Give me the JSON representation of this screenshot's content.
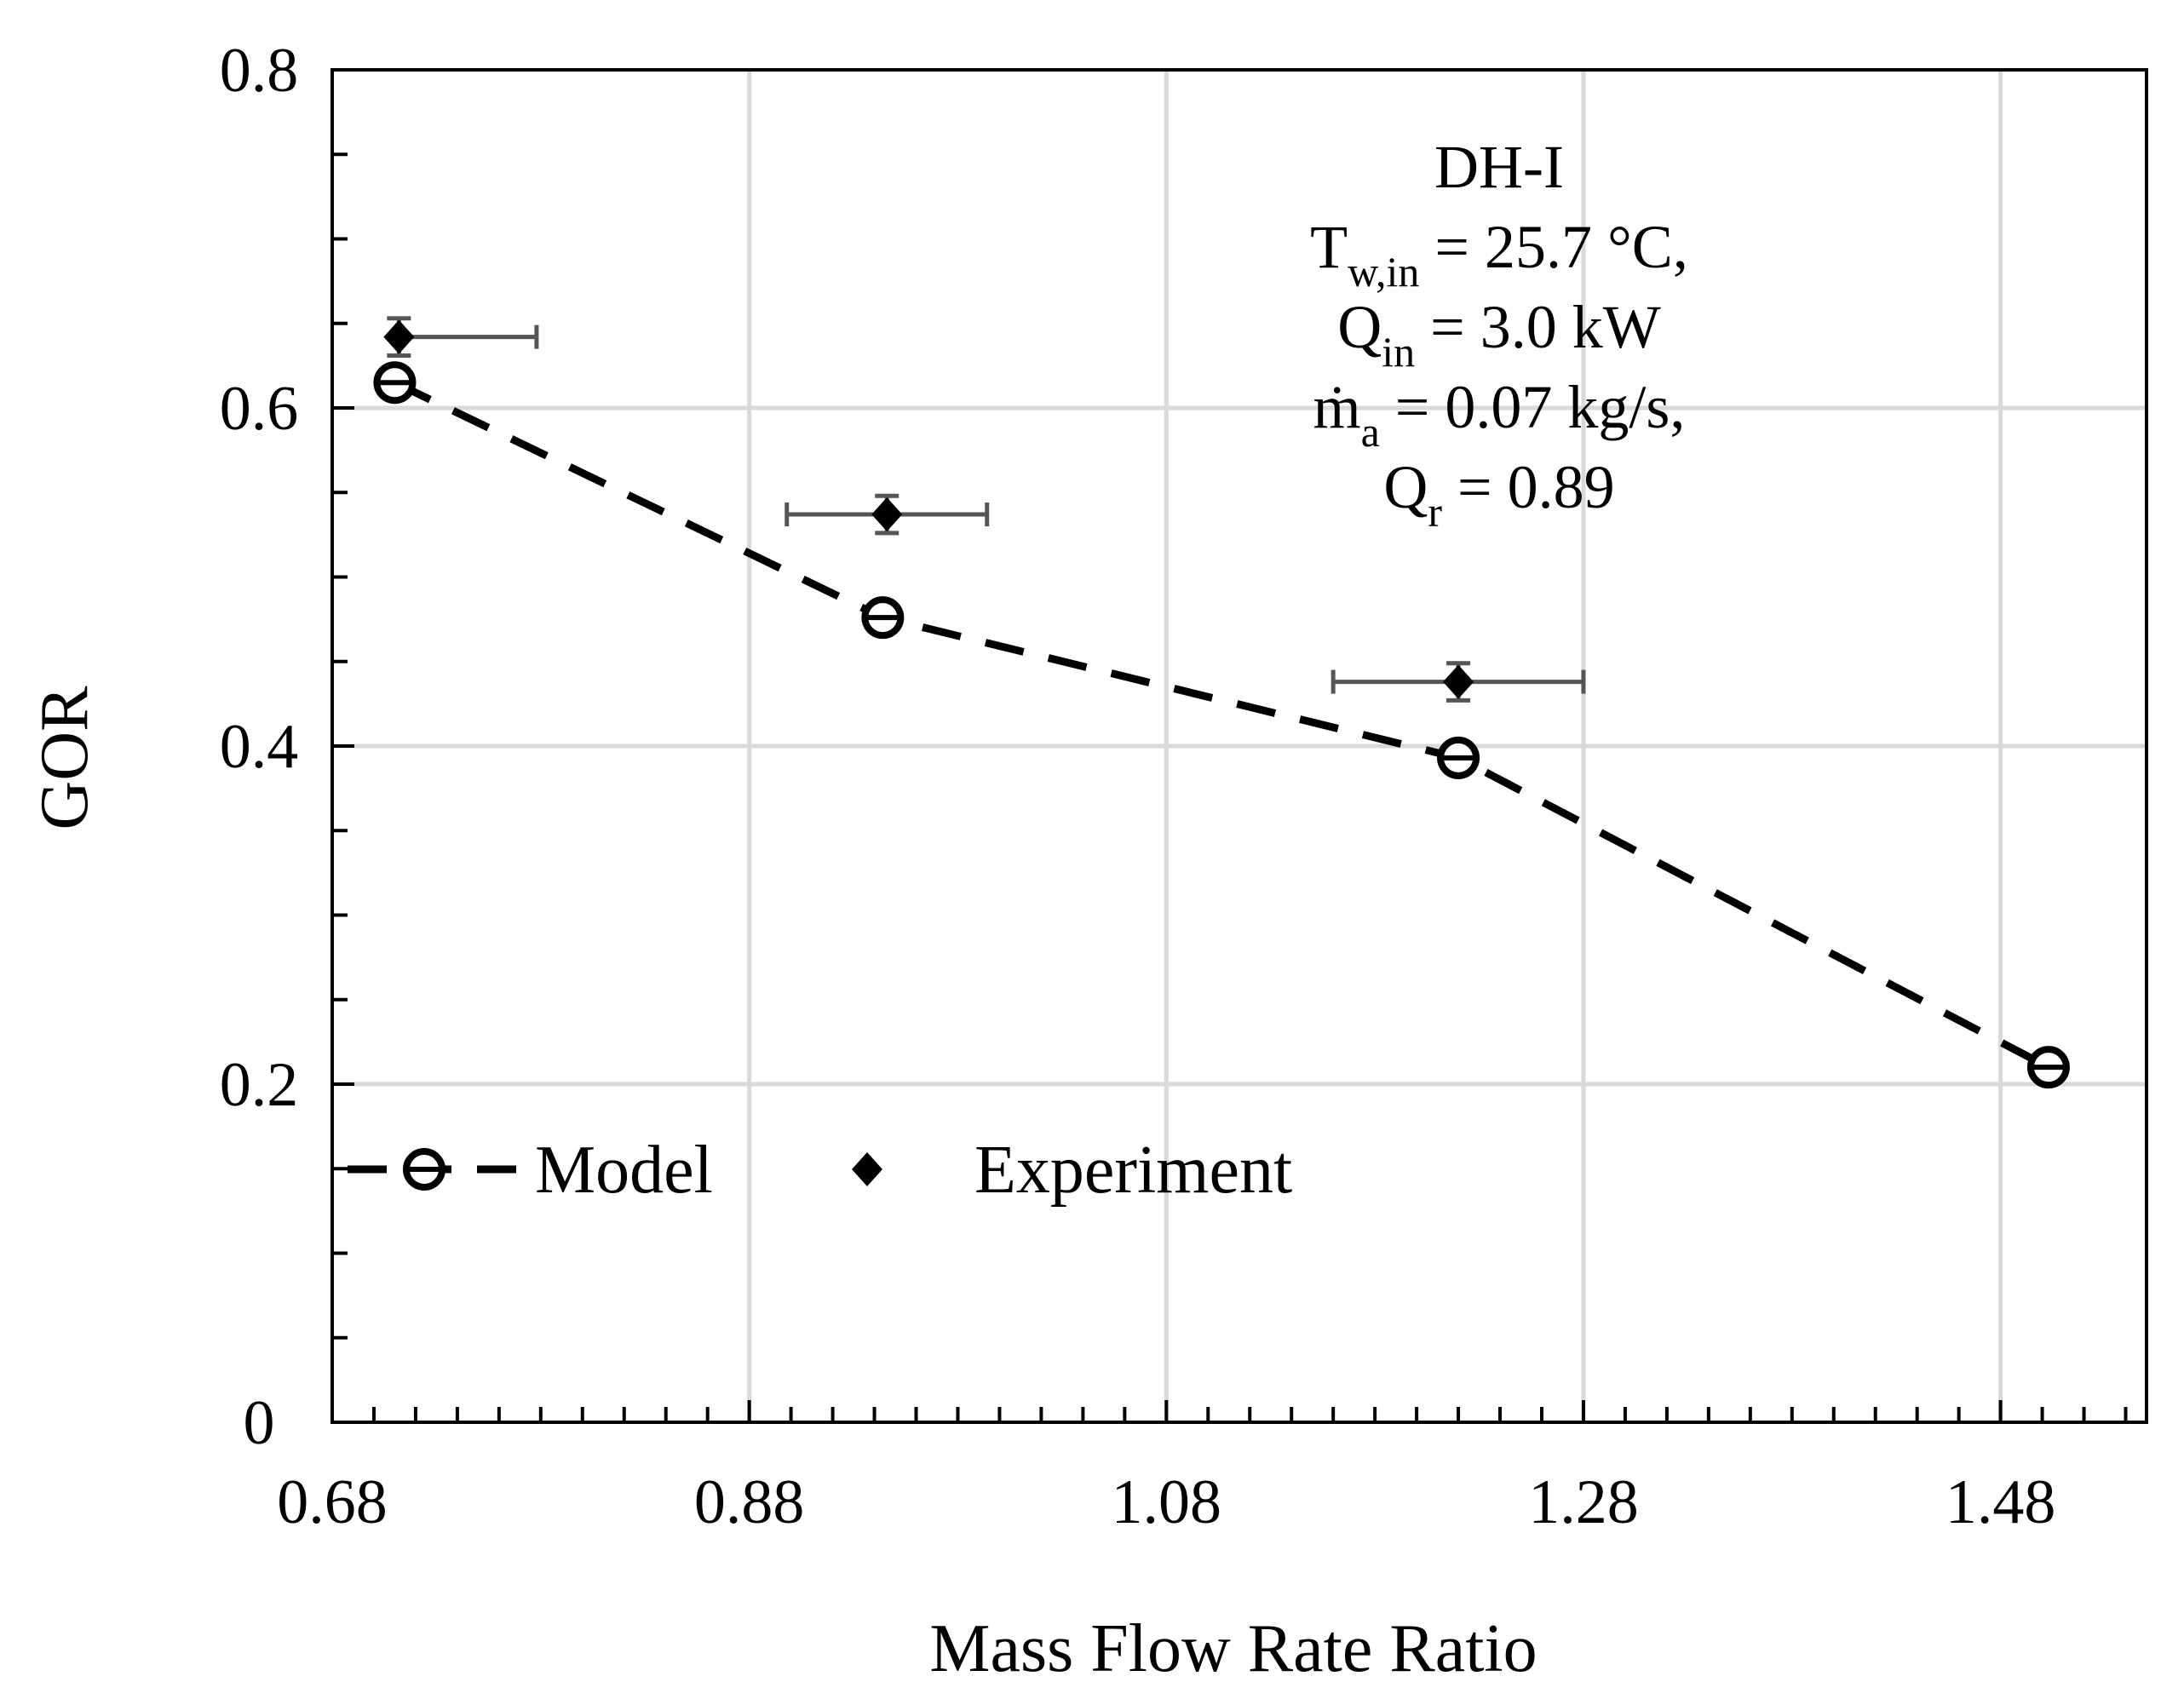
{
  "chart_data": {
    "type": "scatter",
    "title": "",
    "xlabel": "Mass Flow Rate Ratio",
    "ylabel": "GOR",
    "xlim": [
      0.68,
      1.55
    ],
    "ylim": [
      0,
      0.8
    ],
    "x_ticks": [
      0.68,
      0.88,
      1.08,
      1.28,
      1.48
    ],
    "x_tick_labels": [
      "0.68",
      "0.88",
      "1.08",
      "1.28",
      "1.48"
    ],
    "y_ticks": [
      0,
      0.2,
      0.4,
      0.6,
      0.8
    ],
    "y_tick_labels": [
      "0",
      "0.2",
      "0.4",
      "0.6",
      "0.8"
    ],
    "grid": true,
    "series": [
      {
        "name": "Model",
        "style": "dashed-line-with-circle-markers",
        "color": "#000000",
        "x": [
          0.71,
          0.944,
          1.22,
          1.503
        ],
        "y": [
          0.615,
          0.476,
          0.393,
          0.21
        ]
      },
      {
        "name": "Experiment",
        "style": "diamond-markers-with-error-bars",
        "color": "#000000",
        "errorbar_color": "#555555",
        "x": [
          0.712,
          0.946,
          1.22
        ],
        "y": [
          0.642,
          0.537,
          0.438
        ],
        "x_err_low": [
          0.712,
          0.898,
          1.16
        ],
        "x_err_high": [
          0.778,
          0.994,
          1.28
        ],
        "y_err": [
          0.011,
          0.011,
          0.011
        ]
      }
    ],
    "legend": {
      "placement": "bottom-left",
      "entries": [
        "Model",
        "Experiment"
      ]
    },
    "annotation": {
      "line1": "DH-I",
      "line2": {
        "base": "T",
        "sub": "w,in",
        "rest": " = 25.7 °C,"
      },
      "line3": {
        "base": "Q",
        "sub": "in",
        "rest": " = 3.0 kW"
      },
      "line4": {
        "base": "ṁ",
        "sub": "a",
        "rest": " = 0.07 kg/s,"
      },
      "line5": {
        "base": "Q",
        "sub": "r",
        "rest": " = 0.89"
      }
    }
  }
}
